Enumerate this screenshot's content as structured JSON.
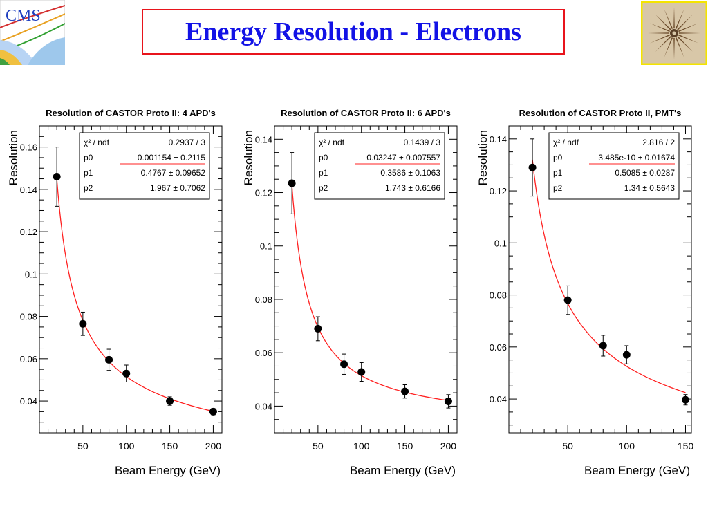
{
  "slide": {
    "title": "Energy Resolution - Electrons",
    "logo_left_text": "CMS"
  },
  "colors": {
    "title": "#1212e6",
    "title_border": "#e8141c",
    "fit_curve": "#ff2020",
    "points": "#000000"
  },
  "icons": {
    "left_logo": "cms-logo-icon",
    "right_logo": "vergina-sun-icon"
  },
  "chart_data": [
    {
      "type": "scatter",
      "title": "Resolution of CASTOR Proto II: 4 APD's",
      "xlabel": "Beam Energy (GeV)",
      "ylabel": "Resolution",
      "xlim": [
        0,
        210
      ],
      "ylim": [
        0.025,
        0.17
      ],
      "xticks": [
        50,
        100,
        150,
        200
      ],
      "xtick_labels": [
        "50",
        "100",
        "150",
        "200"
      ],
      "yticks": [
        0.04,
        0.06,
        0.08,
        0.1,
        0.12,
        0.14,
        0.16
      ],
      "ytick_labels": [
        "0.04",
        "0.06",
        "0.08",
        "0.1",
        "0.12",
        "0.14",
        "0.16"
      ],
      "points": [
        {
          "x": 20,
          "y": 0.146,
          "err": 0.014
        },
        {
          "x": 50,
          "y": 0.0765,
          "err": 0.0055
        },
        {
          "x": 80,
          "y": 0.0595,
          "err": 0.005
        },
        {
          "x": 100,
          "y": 0.053,
          "err": 0.004
        },
        {
          "x": 150,
          "y": 0.04,
          "err": 0.002
        },
        {
          "x": 200,
          "y": 0.035,
          "err": 0.0015
        }
      ],
      "fit": {
        "p0": 0.001154,
        "p1": 0.4767,
        "p2": 1.967,
        "xmin": 20,
        "xmax": 200
      },
      "stats": [
        {
          "name": "χ² / ndf",
          "value": "0.2937 / 3"
        },
        {
          "name": "p0",
          "value": "0.001154 ± 0.2115"
        },
        {
          "name": "p1",
          "value": "0.4767 ± 0.09652"
        },
        {
          "name": "p2",
          "value": "1.967 ± 0.7062"
        }
      ]
    },
    {
      "type": "scatter",
      "title": "Resolution of CASTOR Proto II: 6 APD's",
      "xlabel": "Beam Energy (GeV)",
      "ylabel": "Resolution",
      "xlim": [
        0,
        210
      ],
      "ylim": [
        0.03,
        0.145
      ],
      "xticks": [
        50,
        100,
        150,
        200
      ],
      "xtick_labels": [
        "50",
        "100",
        "150",
        "200"
      ],
      "yticks": [
        0.04,
        0.06,
        0.08,
        0.1,
        0.12,
        0.14
      ],
      "ytick_labels": [
        "0.04",
        "0.06",
        "0.08",
        "0.1",
        "0.12",
        "0.14"
      ],
      "points": [
        {
          "x": 20,
          "y": 0.1235,
          "err": 0.0115
        },
        {
          "x": 50,
          "y": 0.069,
          "err": 0.0045
        },
        {
          "x": 80,
          "y": 0.0557,
          "err": 0.0038
        },
        {
          "x": 100,
          "y": 0.0528,
          "err": 0.0035
        },
        {
          "x": 150,
          "y": 0.0455,
          "err": 0.0025
        },
        {
          "x": 200,
          "y": 0.0418,
          "err": 0.0025
        }
      ],
      "fit": {
        "p0": 0.03247,
        "p1": 0.3586,
        "p2": 1.743,
        "xmin": 20,
        "xmax": 200
      },
      "stats": [
        {
          "name": "χ² / ndf",
          "value": "0.1439 / 3"
        },
        {
          "name": "p0",
          "value": "0.03247 ± 0.007557"
        },
        {
          "name": "p1",
          "value": "0.3586 ± 0.1063"
        },
        {
          "name": "p2",
          "value": "1.743 ± 0.6166"
        }
      ]
    },
    {
      "type": "scatter",
      "title": "Resolution of CASTOR Proto II, PMT's",
      "xlabel": "Beam Energy (GeV)",
      "ylabel": "Resolution",
      "xlim": [
        0,
        155
      ],
      "ylim": [
        0.027,
        0.145
      ],
      "xticks": [
        50,
        100,
        150
      ],
      "xtick_labels": [
        "50",
        "100",
        "150"
      ],
      "yticks": [
        0.04,
        0.06,
        0.08,
        0.1,
        0.12,
        0.14
      ],
      "ytick_labels": [
        "0.04",
        "0.06",
        "0.08",
        "0.1",
        "0.12",
        "0.14"
      ],
      "points": [
        {
          "x": 20,
          "y": 0.129,
          "err": 0.011
        },
        {
          "x": 50,
          "y": 0.078,
          "err": 0.0055
        },
        {
          "x": 80,
          "y": 0.0605,
          "err": 0.004
        },
        {
          "x": 100,
          "y": 0.057,
          "err": 0.0035
        },
        {
          "x": 150,
          "y": 0.0397,
          "err": 0.002
        }
      ],
      "fit": {
        "p0": 3.485e-10,
        "p1": 0.5085,
        "p2": 1.34,
        "xmin": 20,
        "xmax": 150
      },
      "stats": [
        {
          "name": "χ² / ndf",
          "value": "2.816 / 2"
        },
        {
          "name": "p0",
          "value": "3.485e-10 ± 0.01674"
        },
        {
          "name": "p1",
          "value": "0.5085 ± 0.0287"
        },
        {
          "name": "p2",
          "value": "1.34 ± 0.5643"
        }
      ]
    }
  ]
}
